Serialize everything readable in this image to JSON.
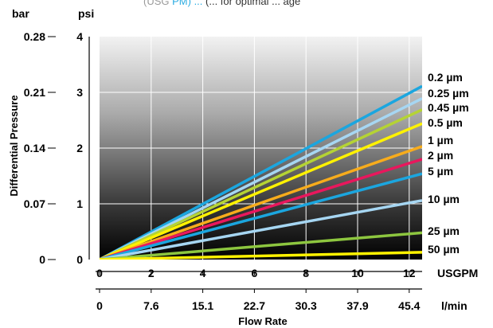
{
  "header_fragment": {
    "text_gray": "(USG",
    "text_blue": "PM) ... ",
    "text_tail": "(... for optimal ... age",
    "color_gray": "#9a9a9a",
    "color_blue": "#29abe2"
  },
  "chart_data": {
    "type": "line",
    "title": "",
    "left_unit": "bar",
    "right_unit": "psi",
    "ylabel": "Differential Pressure",
    "xlabel": "Flow Rate",
    "x_unit_top": "USGPM",
    "x_unit_bottom": "l/min",
    "xlim": [
      0,
      12.5
    ],
    "ylim_psi": [
      0,
      4
    ],
    "x_ticks_usgpm": [
      "0",
      "2",
      "4",
      "6",
      "8",
      "10",
      "12"
    ],
    "x_ticks_lmin": [
      "0",
      "7.6",
      "15.1",
      "22.7",
      "30.3",
      "37.9",
      "45.4"
    ],
    "y_ticks_psi": [
      "0",
      "1",
      "2",
      "3",
      "4"
    ],
    "y_ticks_bar": [
      "0",
      "0.07",
      "0.14",
      "0.21",
      "0.28"
    ],
    "grid": true,
    "legend_position": "right",
    "series": [
      {
        "name": "0.2 µm",
        "color": "#1ba6df",
        "x": [
          0,
          12.5
        ],
        "y": [
          0,
          3.11
        ]
      },
      {
        "name": "0.25 µm",
        "color": "#a6d6f2",
        "x": [
          0,
          12.5
        ],
        "y": [
          0,
          2.89
        ]
      },
      {
        "name": "0.45 µm",
        "color": "#b5d334",
        "x": [
          0,
          12.5
        ],
        "y": [
          0,
          2.69
        ]
      },
      {
        "name": "0.5 µm",
        "color": "#fff200",
        "x": [
          0,
          12.5
        ],
        "y": [
          0,
          2.44
        ]
      },
      {
        "name": "1 µm",
        "color": "#f7ac1c",
        "x": [
          0,
          12.5
        ],
        "y": [
          0,
          2.03
        ]
      },
      {
        "name": "2 µm",
        "color": "#e8175d",
        "x": [
          0,
          12.5
        ],
        "y": [
          0,
          1.8
        ]
      },
      {
        "name": "5 µm",
        "color": "#1ba6df",
        "x": [
          0,
          12.5
        ],
        "y": [
          0,
          1.54
        ]
      },
      {
        "name": "10 µm",
        "color": "#a6d6f2",
        "x": [
          0,
          12.5
        ],
        "y": [
          0,
          1.06
        ]
      },
      {
        "name": "25 µm",
        "color": "#8dc63f",
        "x": [
          0,
          12.5
        ],
        "y": [
          0,
          0.48
        ]
      },
      {
        "name": "50 µm",
        "color": "#fff200",
        "x": [
          0,
          12.5
        ],
        "y": [
          0,
          0.13
        ]
      }
    ]
  }
}
